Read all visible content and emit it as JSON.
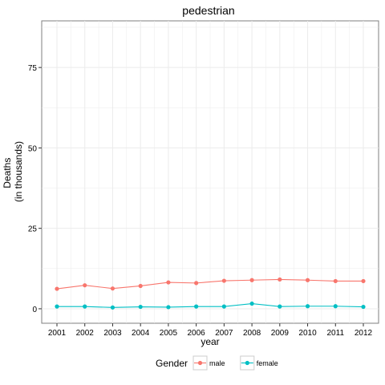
{
  "chart_data": {
    "type": "line",
    "title": "pedestrian",
    "xlabel": "year",
    "ylabel": [
      "Deaths",
      "(in thousands)"
    ],
    "x": [
      2001,
      2002,
      2003,
      2004,
      2005,
      2006,
      2007,
      2008,
      2009,
      2010,
      2011,
      2012
    ],
    "xticks": [
      "2001",
      "2002",
      "2003",
      "2004",
      "2005",
      "2006",
      "2007",
      "2008",
      "2009",
      "2010",
      "2011",
      "2012"
    ],
    "yticks": [
      0,
      25,
      50,
      75
    ],
    "ylim": [
      -4.5,
      89.5
    ],
    "grid": true,
    "legend": {
      "title": "Gender",
      "position": "bottom"
    },
    "series": [
      {
        "name": "male",
        "color": "#F8766D",
        "values": [
          6.2,
          7.3,
          6.3,
          7.1,
          8.2,
          8.0,
          8.7,
          8.9,
          9.1,
          8.9,
          8.6,
          8.6
        ]
      },
      {
        "name": "female",
        "color": "#00BFC4",
        "values": [
          0.7,
          0.7,
          0.4,
          0.6,
          0.5,
          0.7,
          0.7,
          1.6,
          0.7,
          0.8,
          0.8,
          0.6
        ]
      }
    ]
  }
}
